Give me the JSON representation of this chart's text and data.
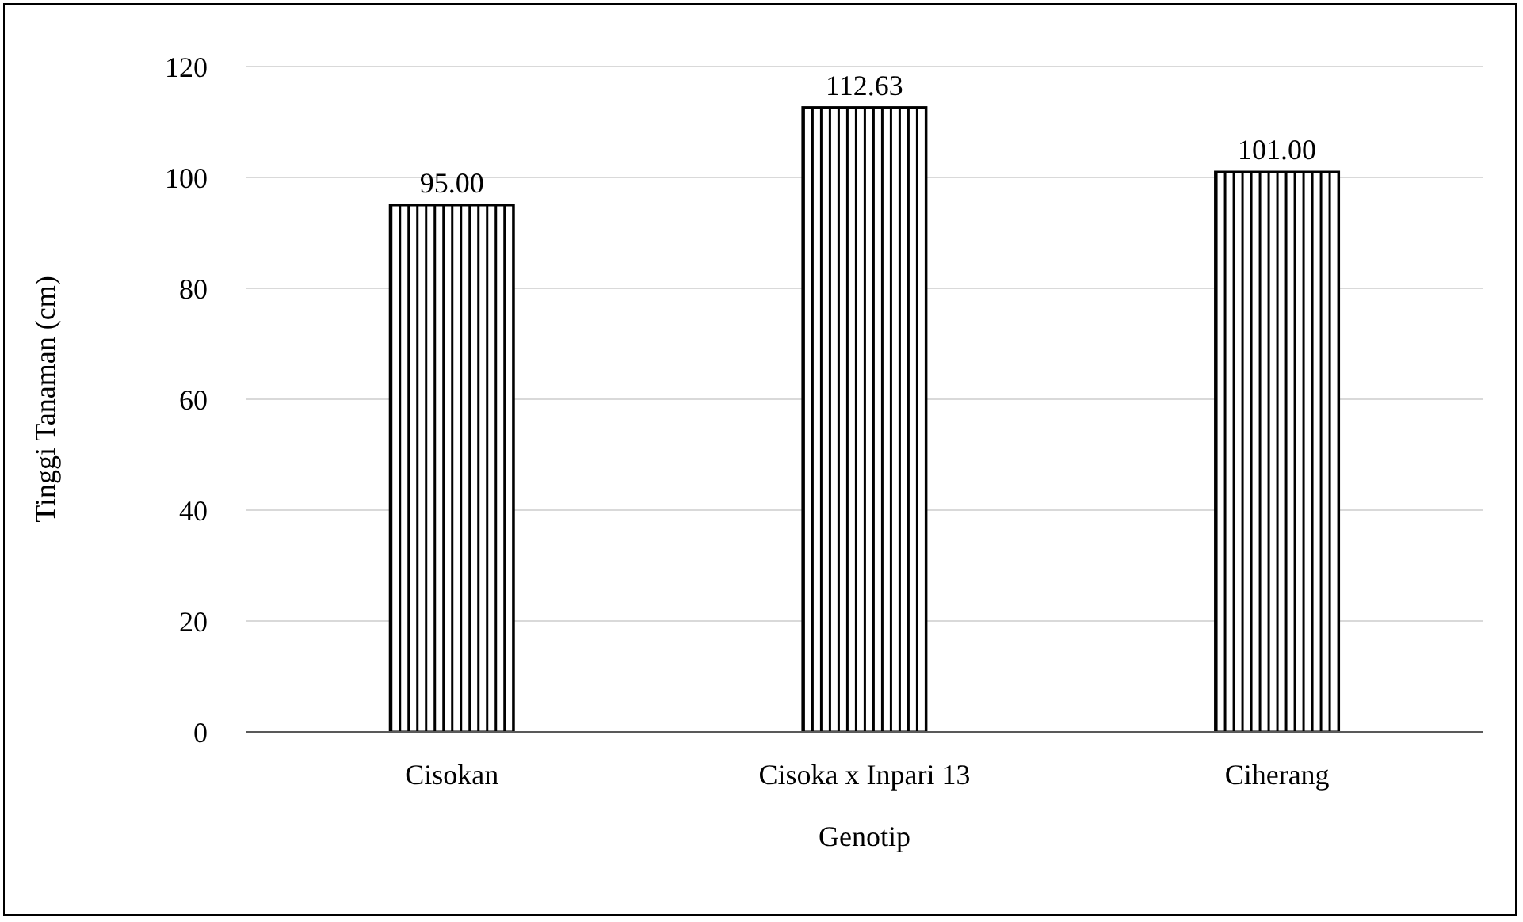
{
  "chart_data": {
    "type": "bar",
    "xlabel": "Genotip",
    "ylabel": "Tinggi Tanaman (cm)",
    "categories": [
      "Cisokan",
      "Cisoka x Inpari 13",
      "Ciherang"
    ],
    "values": [
      95.0,
      112.63,
      101.0
    ],
    "value_labels": [
      "95.00",
      "112.63",
      "101.00"
    ],
    "color": "#000000",
    "ylim": [
      0,
      120
    ],
    "yticks": [
      0,
      20,
      40,
      60,
      80,
      100,
      120
    ],
    "grid": "y"
  }
}
